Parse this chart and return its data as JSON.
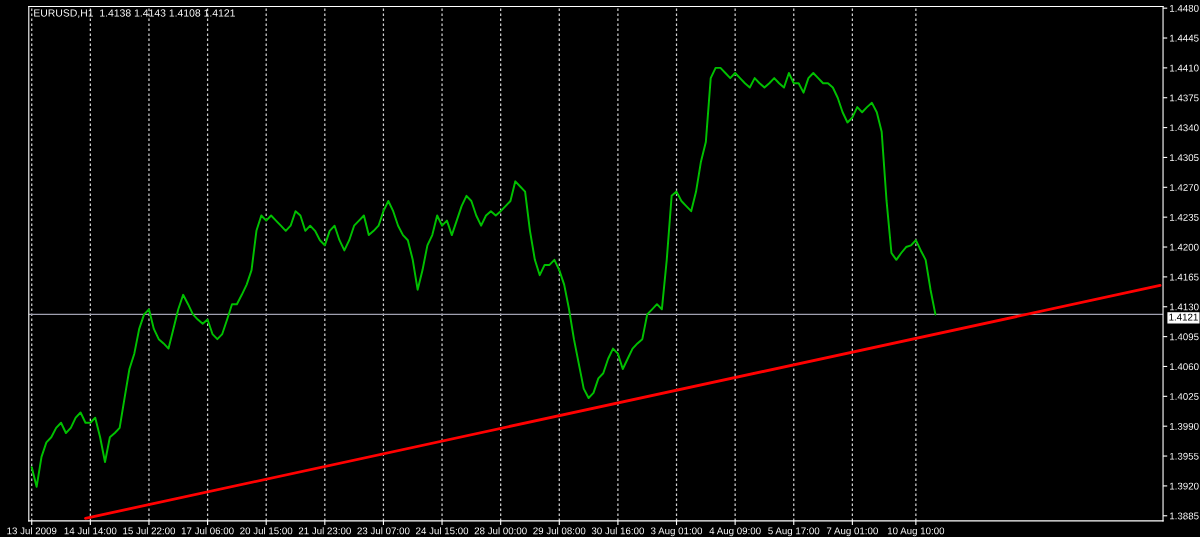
{
  "chart_data": {
    "type": "line",
    "title": "EURUSD,H1  1.4138 1.4143 1.4108 1.4121",
    "categories": [
      "13 Jul 2009",
      null,
      null,
      null,
      null,
      null,
      null,
      null,
      null,
      null,
      null,
      null,
      "14 Jul 14:00",
      null,
      null,
      null,
      null,
      null,
      null,
      null,
      null,
      null,
      null,
      null,
      "15 Jul 22:00",
      null,
      null,
      null,
      null,
      null,
      null,
      null,
      null,
      null,
      null,
      null,
      "17 Jul 06:00",
      null,
      null,
      null,
      null,
      null,
      null,
      null,
      null,
      null,
      null,
      null,
      "20 Jul 15:00",
      null,
      null,
      null,
      null,
      null,
      null,
      null,
      null,
      null,
      null,
      null,
      "21 Jul 23:00",
      null,
      null,
      null,
      null,
      null,
      null,
      null,
      null,
      null,
      null,
      null,
      "23 Jul 07:00",
      null,
      null,
      null,
      null,
      null,
      null,
      null,
      null,
      null,
      null,
      null,
      "24 Jul 15:00",
      null,
      null,
      null,
      null,
      null,
      null,
      null,
      null,
      null,
      null,
      null,
      "28 Jul 00:00",
      null,
      null,
      null,
      null,
      null,
      null,
      null,
      null,
      null,
      null,
      null,
      "29 Jul 08:00",
      null,
      null,
      null,
      null,
      null,
      null,
      null,
      null,
      null,
      null,
      null,
      "30 Jul 16:00",
      null,
      null,
      null,
      null,
      null,
      null,
      null,
      null,
      null,
      null,
      null,
      "3 Aug 01:00",
      null,
      null,
      null,
      null,
      null,
      null,
      null,
      null,
      null,
      null,
      null,
      "4 Aug 09:00",
      null,
      null,
      null,
      null,
      null,
      null,
      null,
      null,
      null,
      null,
      null,
      "5 Aug 17:00",
      null,
      null,
      null,
      null,
      null,
      null,
      null,
      null,
      null,
      null,
      null,
      "7 Aug 01:00",
      null,
      null,
      null,
      null,
      null,
      null,
      null,
      null,
      null,
      null,
      null,
      null,
      "10 Aug 10:00",
      null,
      null,
      null,
      null,
      null,
      null,
      null,
      null,
      null,
      null,
      null,
      null,
      null,
      null,
      null,
      null,
      null,
      null,
      null,
      null,
      null,
      null,
      null,
      null,
      null,
      null,
      null,
      null,
      null,
      null,
      null,
      null,
      null,
      null,
      null,
      null,
      null,
      null,
      null,
      null,
      null,
      null,
      null,
      null,
      null,
      null,
      null,
      null,
      null,
      null
    ],
    "ylim": [
      1.3879,
      1.4482
    ],
    "yticks": [
      {
        "value": 1.3885,
        "label": "1.3885"
      },
      {
        "value": 1.392,
        "label": "1.3920"
      },
      {
        "value": 1.3955,
        "label": "1.3955"
      },
      {
        "value": 1.399,
        "label": "1.3990"
      },
      {
        "value": 1.4025,
        "label": "1.4025"
      },
      {
        "value": 1.406,
        "label": "1.4060"
      },
      {
        "value": 1.4095,
        "label": "1.4095"
      },
      {
        "value": 1.413,
        "label": "1.4130"
      },
      {
        "value": 1.4165,
        "label": "1.4165"
      },
      {
        "value": 1.42,
        "label": "1.4200"
      },
      {
        "value": 1.4235,
        "label": "1.4235"
      },
      {
        "value": 1.427,
        "label": "1.4270"
      },
      {
        "value": 1.4305,
        "label": "1.4305"
      },
      {
        "value": 1.434,
        "label": "1.4340"
      },
      {
        "value": 1.4375,
        "label": "1.4375"
      },
      {
        "value": 1.441,
        "label": "1.4410"
      },
      {
        "value": 1.4445,
        "label": "1.4445"
      },
      {
        "value": 1.448,
        "label": "1.4480"
      }
    ],
    "grid": "x",
    "ref_lines": [
      {
        "axis": "y",
        "value": 1.4121,
        "label": "1.4121",
        "color": "#a0a0b0"
      }
    ],
    "series": [
      {
        "color": "#00c000",
        "values": [
          1.3942,
          1.3919,
          1.3954,
          1.3971,
          1.3977,
          1.3988,
          1.3994,
          1.3982,
          1.3988,
          1.4,
          1.4006,
          1.3994,
          1.3994,
          1.4,
          1.3977,
          1.3948,
          1.3977,
          1.3982,
          1.3988,
          1.4023,
          1.4057,
          1.4075,
          1.4104,
          1.4121,
          1.4127,
          1.4104,
          1.4092,
          1.4087,
          1.4081,
          1.4104,
          1.4127,
          1.4144,
          1.4133,
          1.4121,
          1.4115,
          1.411,
          1.4115,
          1.4098,
          1.4092,
          1.4098,
          1.4115,
          1.4133,
          1.4133,
          1.4144,
          1.4156,
          1.4173,
          1.4219,
          1.4237,
          1.4231,
          1.4237,
          1.4231,
          1.4225,
          1.4219,
          1.4225,
          1.4242,
          1.4237,
          1.4219,
          1.4225,
          1.4219,
          1.4208,
          1.4202,
          1.4219,
          1.4225,
          1.4208,
          1.4196,
          1.4208,
          1.4225,
          1.4231,
          1.4237,
          1.4214,
          1.4219,
          1.4225,
          1.4242,
          1.4254,
          1.4242,
          1.4225,
          1.4214,
          1.4208,
          1.4185,
          1.415,
          1.4173,
          1.4202,
          1.4214,
          1.4237,
          1.4225,
          1.4231,
          1.4214,
          1.4231,
          1.4248,
          1.426,
          1.4254,
          1.4237,
          1.4225,
          1.4237,
          1.4242,
          1.4237,
          1.4242,
          1.4248,
          1.4254,
          1.4277,
          1.4271,
          1.4265,
          1.4219,
          1.4185,
          1.4167,
          1.4179,
          1.4179,
          1.4185,
          1.4173,
          1.4156,
          1.4127,
          1.4092,
          1.4063,
          1.4034,
          1.4023,
          1.4029,
          1.4046,
          1.4052,
          1.4069,
          1.4081,
          1.4075,
          1.4057,
          1.4069,
          1.4081,
          1.4087,
          1.4092,
          1.4121,
          1.4127,
          1.4133,
          1.4127,
          1.4185,
          1.426,
          1.4265,
          1.4254,
          1.4248,
          1.4242,
          1.4265,
          1.43,
          1.4323,
          1.4398,
          1.441,
          1.441,
          1.4404,
          1.4398,
          1.4404,
          1.4398,
          1.4392,
          1.4387,
          1.4398,
          1.4392,
          1.4387,
          1.4392,
          1.4398,
          1.4392,
          1.4387,
          1.4404,
          1.4392,
          1.4392,
          1.4381,
          1.4398,
          1.4404,
          1.4398,
          1.4392,
          1.4392,
          1.4387,
          1.4375,
          1.4358,
          1.4346,
          1.4352,
          1.4364,
          1.4358,
          1.4364,
          1.4369,
          1.4358,
          1.4335,
          1.4254,
          1.4193,
          1.4185,
          1.4193,
          1.42,
          1.4202,
          1.4208,
          1.4196,
          1.4185,
          1.415,
          1.4121,
          null,
          null,
          null,
          null,
          null,
          null,
          null,
          null,
          null,
          null,
          null,
          null,
          null,
          null,
          null,
          null,
          null,
          null,
          null,
          null,
          null,
          null,
          null,
          null,
          null,
          null,
          null,
          null,
          null,
          null,
          null,
          null,
          null,
          null,
          null,
          null,
          null,
          null,
          null,
          null,
          null,
          null,
          null,
          null,
          null,
          null
        ]
      },
      {
        "color": "#ff0000",
        "values": [
          null,
          null,
          null,
          null,
          null,
          null,
          null,
          null,
          null,
          null,
          null,
          1.3882,
          null,
          null,
          null,
          null,
          null,
          null,
          null,
          null,
          null,
          null,
          null,
          null,
          null,
          null,
          null,
          null,
          null,
          null,
          null,
          null,
          null,
          null,
          null,
          null,
          null,
          null,
          null,
          null,
          null,
          null,
          null,
          null,
          null,
          null,
          null,
          null,
          null,
          null,
          null,
          null,
          null,
          null,
          null,
          null,
          null,
          null,
          null,
          null,
          null,
          null,
          null,
          null,
          null,
          null,
          null,
          null,
          null,
          null,
          null,
          null,
          null,
          null,
          null,
          null,
          null,
          null,
          null,
          null,
          null,
          null,
          null,
          null,
          null,
          null,
          null,
          null,
          null,
          null,
          null,
          null,
          null,
          null,
          null,
          null,
          null,
          null,
          null,
          null,
          null,
          null,
          null,
          null,
          null,
          null,
          null,
          null,
          null,
          null,
          null,
          null,
          null,
          null,
          null,
          null,
          null,
          null,
          null,
          null,
          null,
          null,
          null,
          null,
          null,
          null,
          null,
          null,
          null,
          null,
          null,
          null,
          null,
          null,
          null,
          null,
          null,
          null,
          null,
          null,
          null,
          null,
          null,
          null,
          null,
          null,
          null,
          null,
          null,
          null,
          null,
          null,
          null,
          null,
          null,
          null,
          null,
          null,
          null,
          null,
          null,
          null,
          null,
          null,
          null,
          null,
          null,
          null,
          null,
          null,
          null,
          null,
          null,
          null,
          null,
          null,
          null,
          null,
          null,
          null,
          null,
          null,
          null,
          null,
          null,
          null,
          null,
          null,
          null,
          null,
          null,
          null,
          null,
          null,
          null,
          null,
          null,
          null,
          null,
          null,
          null,
          null,
          null,
          null,
          null,
          null,
          null,
          null,
          null,
          null,
          null,
          null,
          null,
          null,
          null,
          null,
          null,
          null,
          null,
          null,
          null,
          null,
          null,
          null,
          null,
          null,
          null,
          null,
          null,
          null,
          null,
          1.4155
        ]
      }
    ]
  }
}
